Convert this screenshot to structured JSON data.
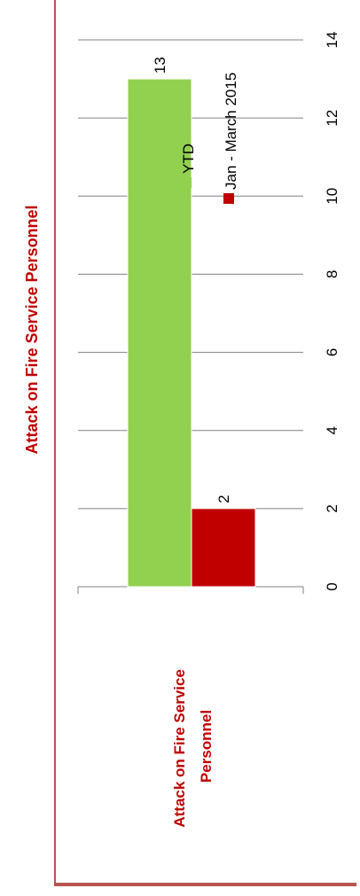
{
  "chart_data": {
    "type": "bar",
    "orientation": "horizontal",
    "title": "Attack on Fire Service Personnel",
    "categories": [
      "Attack on Fire Service Personnel"
    ],
    "category_lines": [
      "Attack on Fire Service",
      "Personnel"
    ],
    "series": [
      {
        "name": "YTD",
        "values": [
          13
        ],
        "color": "#92d050"
      },
      {
        "name": "Jan - March 2015",
        "values": [
          2
        ],
        "color": "#c00000"
      }
    ],
    "xlim": [
      0,
      14
    ],
    "ticks": [
      0,
      2,
      4,
      6,
      8,
      10,
      12,
      14
    ],
    "grid": true,
    "data_labels": true,
    "legend_position": "right",
    "rotation": "rotated 90 degrees counter-clockwise"
  },
  "colors": {
    "frame": "#b85450",
    "title": "#c00000",
    "grid": "#808080"
  }
}
